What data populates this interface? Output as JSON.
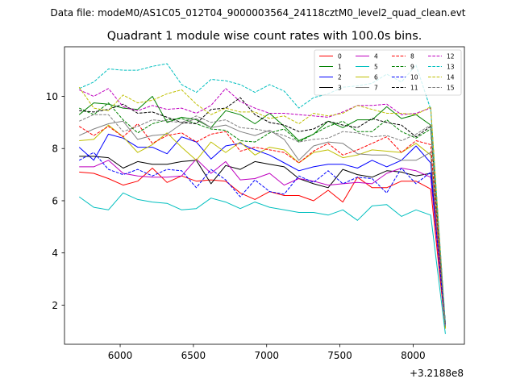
{
  "suptitle": "Data file: modeM0/AS1C05_012T04_9000003564_24118cztM0_level2_quad_clean.evt",
  "chart_data": {
    "type": "line",
    "title": "Quadrant 1 module wise count rates with 100.0s bins.",
    "xlabel": "",
    "ylabel": "",
    "x_offset_label": "+3.2188e8",
    "xlim": [
      5620,
      8350
    ],
    "ylim": [
      0.5,
      11.9
    ],
    "xticks": [
      6000,
      6500,
      7000,
      7500,
      8000
    ],
    "xtick_labels": [
      "6000",
      "6500",
      "7000",
      "7500",
      "8000"
    ],
    "yticks": [
      2,
      4,
      6,
      8,
      10
    ],
    "ytick_labels": [
      "2",
      "4",
      "6",
      "8",
      "10"
    ],
    "legend_position": "top-right",
    "x": [
      5720,
      5820,
      5920,
      6020,
      6120,
      6220,
      6320,
      6420,
      6520,
      6620,
      6720,
      6820,
      6920,
      7020,
      7120,
      7220,
      7320,
      7420,
      7520,
      7620,
      7720,
      7820,
      7920,
      8020,
      8120,
      8220
    ],
    "series": [
      {
        "name": "0",
        "color": "#ff0000",
        "dash": "solid",
        "values": [
          7.1,
          7.05,
          6.85,
          6.6,
          6.75,
          7.25,
          6.7,
          6.95,
          6.75,
          6.8,
          6.75,
          6.3,
          6.05,
          6.35,
          6.2,
          6.2,
          6.0,
          6.4,
          5.95,
          6.9,
          6.5,
          6.5,
          6.75,
          6.75,
          6.45,
          1.1
        ]
      },
      {
        "name": "1",
        "color": "#008000",
        "dash": "solid",
        "values": [
          9.3,
          9.75,
          9.7,
          9.55,
          9.5,
          10.0,
          9.0,
          9.2,
          9.1,
          8.8,
          9.45,
          9.3,
          8.95,
          9.35,
          8.85,
          8.3,
          8.55,
          9.05,
          8.8,
          9.1,
          9.1,
          9.6,
          9.15,
          9.3,
          8.9,
          1.2
        ]
      },
      {
        "name": "2",
        "color": "#0000ff",
        "dash": "solid",
        "values": [
          8.05,
          7.55,
          8.55,
          8.4,
          8.05,
          8.05,
          7.8,
          8.45,
          8.25,
          7.6,
          8.1,
          8.2,
          7.95,
          7.75,
          7.45,
          7.15,
          7.3,
          7.4,
          7.4,
          7.25,
          7.55,
          7.3,
          7.55,
          8.1,
          7.45,
          1.3
        ]
      },
      {
        "name": "3",
        "color": "#000000",
        "dash": "solid",
        "values": [
          7.7,
          7.7,
          7.65,
          7.25,
          7.5,
          7.4,
          7.4,
          7.5,
          7.55,
          6.65,
          7.35,
          7.2,
          7.5,
          7.4,
          7.3,
          6.85,
          6.65,
          6.5,
          7.2,
          7.0,
          6.9,
          7.15,
          7.1,
          6.95,
          7.05,
          1.2
        ]
      },
      {
        "name": "4",
        "color": "#bf00bf",
        "dash": "solid",
        "values": [
          7.3,
          7.3,
          7.55,
          7.05,
          6.95,
          6.9,
          6.9,
          6.95,
          7.6,
          7.05,
          7.5,
          6.8,
          6.85,
          7.05,
          6.6,
          6.85,
          6.75,
          6.6,
          6.65,
          6.7,
          6.65,
          7.05,
          7.25,
          7.15,
          6.9,
          1.25
        ]
      },
      {
        "name": "5",
        "color": "#00bfbf",
        "dash": "solid",
        "values": [
          6.15,
          5.75,
          5.65,
          6.3,
          6.05,
          5.95,
          5.9,
          5.65,
          5.7,
          6.1,
          5.95,
          5.7,
          5.95,
          5.75,
          5.65,
          5.55,
          5.55,
          5.45,
          5.65,
          5.25,
          5.8,
          5.85,
          5.4,
          5.65,
          5.45,
          0.9
        ]
      },
      {
        "name": "6",
        "color": "#bfbf00",
        "dash": "solid",
        "values": [
          8.3,
          8.35,
          8.9,
          8.45,
          7.85,
          8.15,
          8.6,
          8.05,
          7.55,
          8.25,
          7.85,
          8.25,
          7.75,
          8.05,
          7.95,
          7.45,
          7.85,
          7.95,
          7.65,
          7.75,
          7.95,
          7.9,
          7.85,
          8.2,
          7.75,
          1.1
        ]
      },
      {
        "name": "7",
        "color": "#808080",
        "dash": "solid",
        "values": [
          8.5,
          8.75,
          8.95,
          9.05,
          8.35,
          8.5,
          8.55,
          8.95,
          9.15,
          8.8,
          8.9,
          8.65,
          8.5,
          8.7,
          8.35,
          7.55,
          8.1,
          8.25,
          8.2,
          7.8,
          7.75,
          7.75,
          7.55,
          7.55,
          7.85,
          1.15
        ]
      },
      {
        "name": "8",
        "color": "#ff0000",
        "dash": "dashed",
        "values": [
          8.85,
          8.5,
          8.85,
          8.45,
          8.95,
          8.2,
          8.5,
          8.6,
          8.25,
          8.55,
          8.65,
          7.9,
          8.05,
          7.95,
          7.85,
          7.45,
          7.9,
          8.2,
          7.75,
          7.95,
          8.2,
          8.45,
          7.85,
          8.3,
          8.15,
          1.2
        ]
      },
      {
        "name": "9",
        "color": "#008000",
        "dash": "dashed",
        "values": [
          9.55,
          9.3,
          9.75,
          9.1,
          8.6,
          8.95,
          9.1,
          9.15,
          8.95,
          8.75,
          8.7,
          8.3,
          8.25,
          8.6,
          8.75,
          8.25,
          8.55,
          8.85,
          9.05,
          8.65,
          8.65,
          9.1,
          8.65,
          8.4,
          8.75,
          1.15
        ]
      },
      {
        "name": "10",
        "color": "#0000ff",
        "dash": "dashed",
        "values": [
          7.55,
          7.85,
          7.2,
          7.0,
          7.2,
          6.95,
          7.2,
          7.15,
          6.5,
          7.2,
          6.8,
          6.15,
          6.8,
          6.35,
          6.25,
          6.95,
          6.7,
          7.15,
          6.65,
          6.9,
          6.85,
          6.3,
          7.25,
          6.65,
          7.1,
          1.2
        ]
      },
      {
        "name": "11",
        "color": "#000000",
        "dash": "dashed",
        "values": [
          9.45,
          9.4,
          9.5,
          9.7,
          9.35,
          9.4,
          9.2,
          9.0,
          8.95,
          9.5,
          9.55,
          9.95,
          9.3,
          9.0,
          8.9,
          8.65,
          8.75,
          9.05,
          8.9,
          8.8,
          9.15,
          9.0,
          8.9,
          8.45,
          8.85,
          1.3
        ]
      },
      {
        "name": "12",
        "color": "#bf00bf",
        "dash": "dashed",
        "values": [
          10.25,
          10.0,
          10.3,
          9.6,
          9.45,
          9.65,
          9.5,
          9.55,
          9.35,
          9.65,
          10.3,
          9.8,
          9.55,
          9.35,
          9.35,
          9.3,
          9.25,
          9.2,
          9.4,
          9.65,
          9.65,
          9.7,
          9.3,
          9.35,
          9.55,
          1.2
        ]
      },
      {
        "name": "13",
        "color": "#00bfbf",
        "dash": "dashed",
        "values": [
          10.3,
          10.55,
          11.05,
          11.0,
          11.0,
          11.15,
          11.25,
          10.45,
          10.15,
          10.65,
          10.6,
          10.45,
          10.15,
          10.45,
          10.2,
          9.55,
          9.95,
          10.1,
          10.35,
          10.4,
          10.5,
          10.85,
          10.55,
          11.2,
          9.5,
          1.3
        ]
      },
      {
        "name": "14",
        "color": "#bfbf00",
        "dash": "dashed",
        "values": [
          10.35,
          9.55,
          9.45,
          10.05,
          9.75,
          9.85,
          10.1,
          10.25,
          9.7,
          9.3,
          9.55,
          9.4,
          9.4,
          9.15,
          9.25,
          8.95,
          9.35,
          9.25,
          9.35,
          9.65,
          9.5,
          9.35,
          9.35,
          9.3,
          9.6,
          1.15
        ]
      },
      {
        "name": "15",
        "color": "#808080",
        "dash": "dashed",
        "values": [
          9.05,
          9.3,
          9.3,
          8.65,
          8.85,
          9.1,
          9.05,
          9.0,
          9.25,
          9.0,
          9.1,
          8.8,
          8.75,
          8.65,
          8.5,
          8.25,
          8.35,
          8.4,
          8.65,
          8.6,
          8.45,
          8.5,
          8.3,
          8.55,
          8.9,
          1.2
        ]
      }
    ]
  }
}
